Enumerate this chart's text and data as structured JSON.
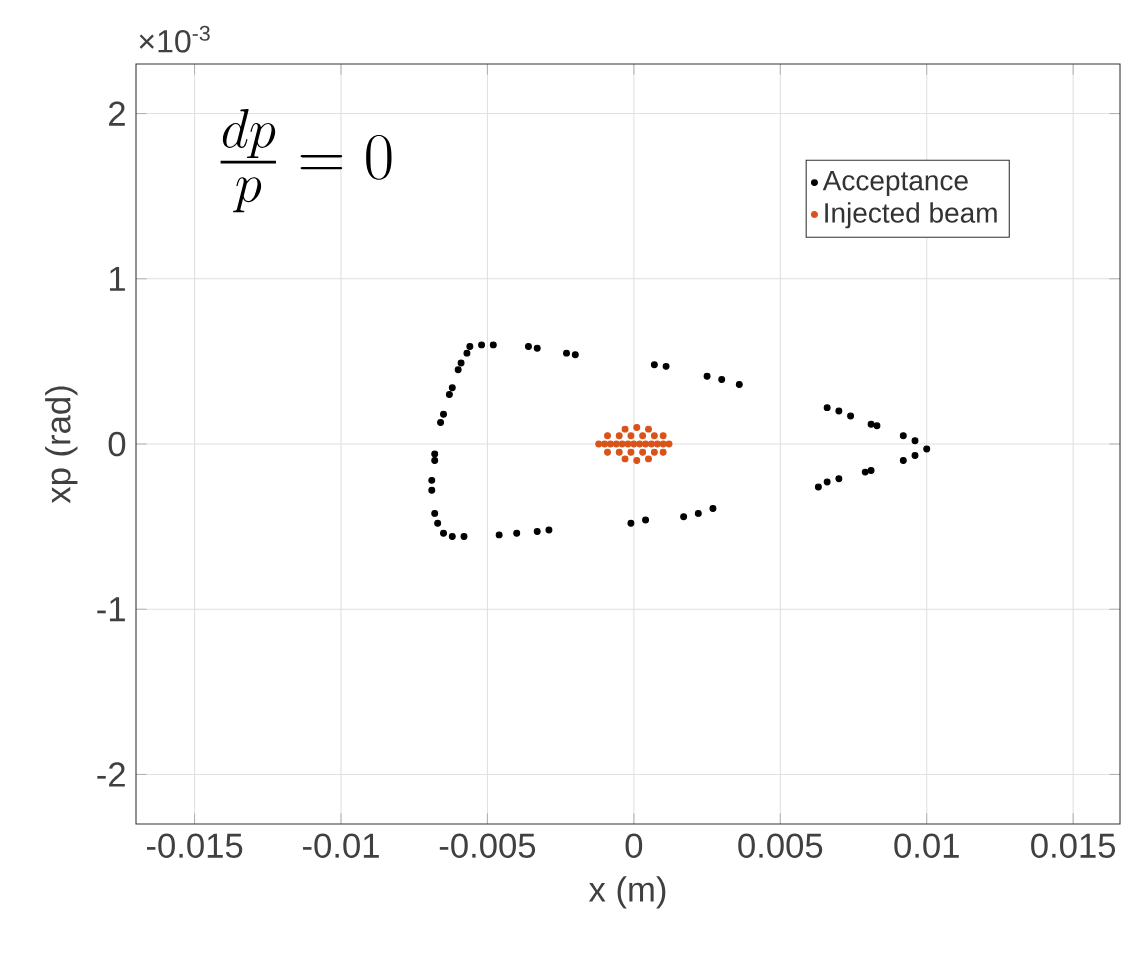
{
  "chart_data": {
    "type": "scatter",
    "xlabel": "x (m)",
    "ylabel": "xp (rad)",
    "annotations": [
      "\\frac{dp}{p} = 0",
      "×10$^{-3}$"
    ],
    "xlim": [
      -0.017,
      0.0166
    ],
    "ylim": [
      -2.3,
      2.3
    ],
    "xticks": [
      -0.015,
      -0.01,
      -0.005,
      0,
      0.005,
      0.01,
      0.015
    ],
    "yticks": [
      -2,
      -1,
      0,
      1,
      2
    ],
    "grid": true,
    "legend": "top right",
    "marker": "circle",
    "series": [
      {
        "name": "Acceptance",
        "color": "#000000",
        "x": [
          -0.0057,
          -0.0056,
          -0.0052,
          -0.0048,
          -0.0036,
          -0.0033,
          -0.0023,
          -0.002,
          0.0007,
          0.0011,
          0.0025,
          0.003,
          0.0036,
          0.0066,
          0.007,
          0.0074,
          0.0081,
          0.0083,
          0.0092,
          0.0096,
          0.01,
          0.0096,
          0.0092,
          0.0081,
          0.0079,
          0.007,
          0.0066,
          0.0063,
          0.0027,
          0.0022,
          0.0017,
          0.0004,
          -0.0001,
          -0.0029,
          -0.0033,
          -0.004,
          -0.0046,
          -0.0058,
          -0.0062,
          -0.0065,
          -0.0067,
          -0.0068,
          -0.0069,
          -0.0069,
          -0.0068,
          -0.0068,
          -0.0066,
          -0.0065,
          -0.0063,
          -0.0062,
          -0.006,
          -0.0059
        ],
        "values": [
          0.55,
          0.59,
          0.6,
          0.6,
          0.59,
          0.58,
          0.55,
          0.54,
          0.48,
          0.47,
          0.41,
          0.39,
          0.36,
          0.22,
          0.2,
          0.17,
          0.12,
          0.11,
          0.05,
          0.02,
          -0.03,
          -0.07,
          -0.1,
          -0.16,
          -0.17,
          -0.21,
          -0.23,
          -0.26,
          -0.39,
          -0.42,
          -0.44,
          -0.46,
          -0.48,
          -0.52,
          -0.53,
          -0.54,
          -0.55,
          -0.56,
          -0.56,
          -0.54,
          -0.48,
          -0.42,
          -0.28,
          -0.22,
          -0.1,
          -0.06,
          0.13,
          0.18,
          0.3,
          0.34,
          0.45,
          0.49
        ]
      },
      {
        "name": "Injected beam",
        "color": "#d95319",
        "x": [
          -0.0012,
          -0.001,
          -0.0008,
          -0.0006,
          -0.0004,
          -0.0002,
          0,
          0.0002,
          0.0004,
          0.0006,
          0.0008,
          0.001,
          0.0012,
          -0.0009,
          -0.0005,
          -0.0001,
          0.0003,
          0.0007,
          0.001,
          -0.0009,
          -0.0005,
          -0.0001,
          0.0003,
          0.0007,
          0.001,
          -0.0003,
          0.0001,
          0.0005,
          -0.0003,
          0.0001,
          0.0005
        ],
        "values": [
          0,
          0,
          0,
          0,
          0,
          0,
          0,
          0,
          0,
          0,
          0,
          0,
          0,
          0.05,
          0.05,
          0.05,
          0.05,
          0.05,
          0.05,
          -0.05,
          -0.05,
          -0.05,
          -0.05,
          -0.05,
          -0.05,
          0.09,
          0.1,
          0.09,
          -0.09,
          -0.1,
          -0.09
        ]
      }
    ]
  }
}
